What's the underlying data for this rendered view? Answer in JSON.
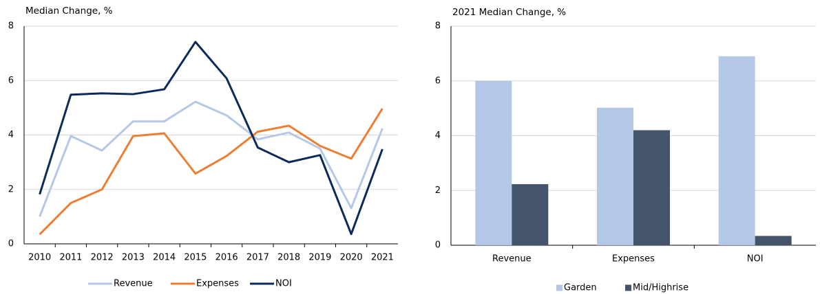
{
  "chart_data": [
    {
      "type": "line",
      "title": "Median Change, %",
      "categories": [
        "2010",
        "2011",
        "2012",
        "2013",
        "2014",
        "2015",
        "2016",
        "2017",
        "2018",
        "2019",
        "2020",
        "2021"
      ],
      "series": [
        {
          "name": "Revenue",
          "color": "#b4c7e7",
          "values": [
            1.0,
            3.96,
            3.43,
            4.5,
            4.5,
            5.22,
            4.72,
            3.84,
            4.09,
            3.5,
            1.31,
            4.24
          ]
        },
        {
          "name": "Expenses",
          "color": "#ed7d31",
          "values": [
            0.35,
            1.5,
            2.0,
            3.96,
            4.06,
            2.58,
            3.23,
            4.12,
            4.34,
            3.6,
            3.13,
            4.97
          ]
        },
        {
          "name": "NOI",
          "color": "#0b2a5a",
          "values": [
            1.82,
            5.48,
            5.53,
            5.5,
            5.68,
            7.42,
            6.08,
            3.54,
            3.0,
            3.26,
            0.36,
            3.48
          ]
        }
      ],
      "ylim": [
        0,
        8
      ],
      "yticks": [
        0,
        2,
        4,
        6,
        8
      ],
      "grid": true,
      "legend": "bottom"
    },
    {
      "type": "bar",
      "title": "2021 Median Change, %",
      "categories": [
        "Revenue",
        "Expenses",
        "NOI"
      ],
      "series": [
        {
          "name": "Garden",
          "color": "#b4c7e7",
          "values": [
            6.0,
            5.02,
            6.9
          ]
        },
        {
          "name": "Mid/Highrise",
          "color": "#44546a",
          "values": [
            2.23,
            4.2,
            0.34
          ]
        }
      ],
      "ylim": [
        0,
        8
      ],
      "yticks": [
        0,
        2,
        4,
        6,
        8
      ],
      "grid": true,
      "legend": "bottom"
    }
  ]
}
